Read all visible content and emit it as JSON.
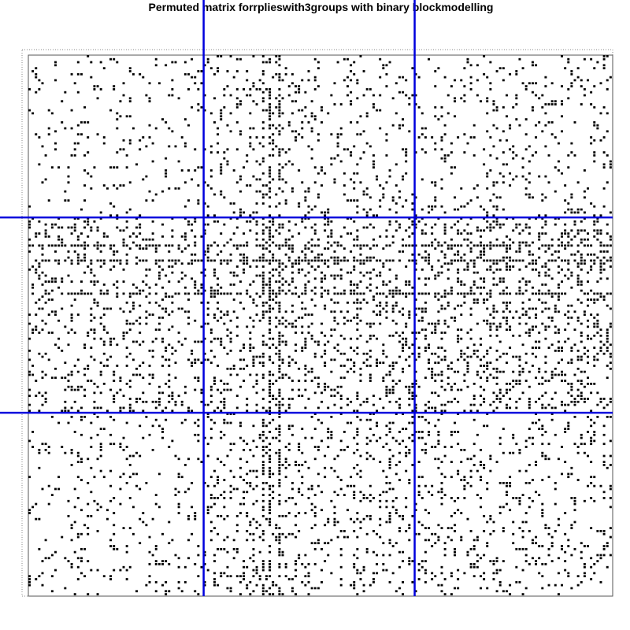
{
  "chart_data": {
    "type": "heatmap",
    "title": "Permuted matrix forrepliesWith3groups with binary blockmodelling",
    "title_display": "Permuted matrix forrplieswith3groups with binary blockmodelling",
    "matrix": "binary adjacency matrix, black cells = 1, white cells = 0",
    "n_groups": 3,
    "partition_fraction": [
      0.3,
      0.36,
      0.34
    ],
    "colors": {
      "cell_on": "#000000",
      "cell_off": "#ffffff",
      "partition_lines": "#0000dd",
      "frame": "#555555"
    },
    "block_density": [
      [
        0.07,
        0.12,
        0.1
      ],
      [
        0.16,
        0.2,
        0.22
      ],
      [
        0.08,
        0.15,
        0.13
      ]
    ],
    "dense_rows": [
      0.35,
      0.38,
      0.44
    ],
    "dense_cols": [
      0.4,
      0.41,
      0.43
    ]
  }
}
